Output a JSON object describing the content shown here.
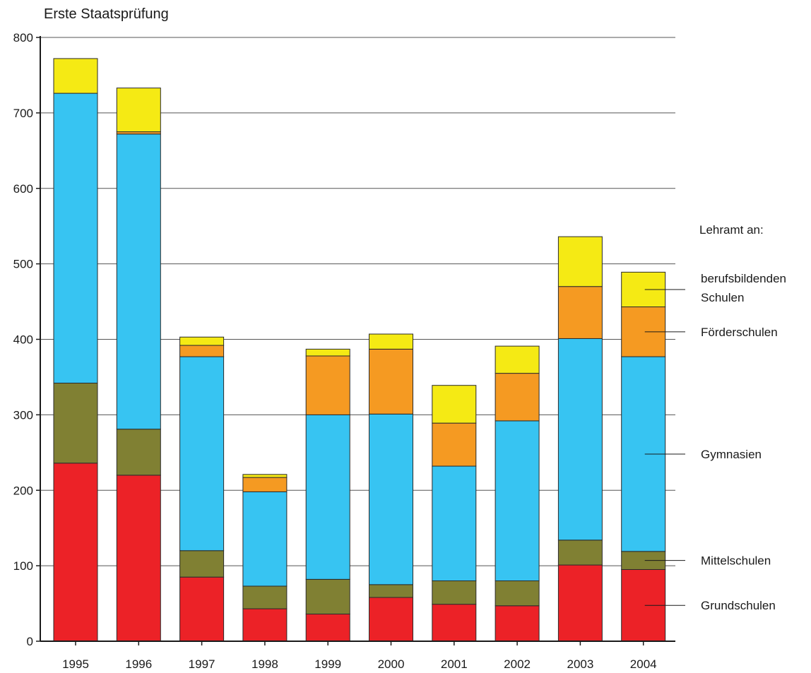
{
  "chart_data": {
    "type": "bar",
    "stacked": true,
    "title": "Erste Staatsprüfung",
    "categories": [
      "1995",
      "1996",
      "1997",
      "1998",
      "1999",
      "2000",
      "2001",
      "2002",
      "2003",
      "2004"
    ],
    "ylim": [
      0,
      800
    ],
    "yticks": [
      "0",
      "100",
      "200",
      "300",
      "400",
      "500",
      "600",
      "700",
      "800"
    ],
    "grid": true,
    "legend_title": "Lehramt an:",
    "series": [
      {
        "name": "Grundschulen",
        "color": "#ec2227",
        "values": [
          236,
          220,
          85,
          43,
          36,
          58,
          49,
          47,
          101,
          95
        ]
      },
      {
        "name": "Mittelschulen",
        "color": "#808033",
        "values": [
          106,
          61,
          35,
          30,
          46,
          17,
          31,
          33,
          33,
          24
        ]
      },
      {
        "name": "Gymnasien",
        "color": "#37c4f2",
        "values": [
          384,
          391,
          257,
          125,
          218,
          226,
          152,
          212,
          267,
          258
        ]
      },
      {
        "name": "Förderschulen",
        "color": "#f59a22",
        "values": [
          0,
          3,
          15,
          19,
          78,
          86,
          57,
          63,
          69,
          66
        ]
      },
      {
        "name": "berufsbildenden Schulen",
        "name_lines": [
          "berufsbildenden",
          "Schulen"
        ],
        "color": "#f5ea14",
        "values": [
          46,
          58,
          11,
          4,
          9,
          20,
          50,
          36,
          66,
          46
        ]
      }
    ]
  }
}
